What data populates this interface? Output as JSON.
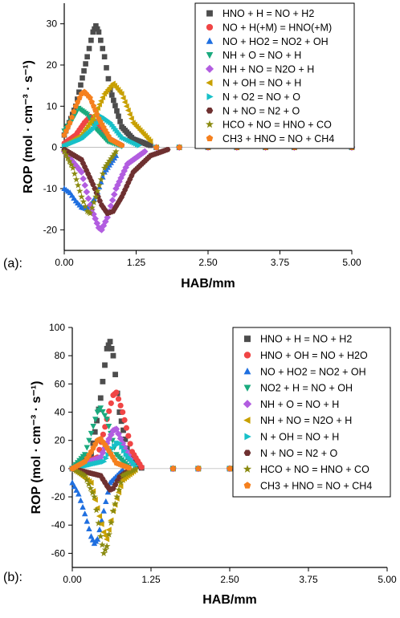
{
  "chart_data": [
    {
      "type": "scatter",
      "panel_label": "(a):",
      "xlabel": "HAB/mm",
      "ylabel": "ROP (mol · cm⁻³ · s⁻¹)",
      "xlim": [
        0,
        5
      ],
      "ylim": [
        -25,
        35
      ],
      "xticks": [
        "0.00",
        "1.25",
        "2.50",
        "3.75",
        "5.00"
      ],
      "yticks": [
        "30",
        "20",
        "10",
        "0",
        "-10",
        "-20"
      ],
      "grid": false,
      "legend_position": "top-right",
      "series": [
        {
          "name": "HNO + H = NO + H2",
          "marker": "square",
          "color": "#4d4d4d",
          "x": [
            0.0,
            0.2,
            0.4,
            0.5,
            0.55,
            0.6,
            0.7,
            0.8,
            1.0,
            1.2,
            1.5
          ],
          "y": [
            3,
            10,
            22,
            28,
            29.5,
            28,
            22,
            14,
            5,
            2,
            0.5
          ]
        },
        {
          "name": "NO + H(+M) = HNO(+M)",
          "marker": "circle",
          "color": "#f04545",
          "x": [
            0.0,
            0.2,
            0.35,
            0.45,
            0.6,
            0.8,
            1.0
          ],
          "y": [
            1,
            3,
            6,
            7.5,
            5,
            2,
            0.5
          ]
        },
        {
          "name": "NO + HO2 = NO2 + OH",
          "marker": "triangle-up",
          "color": "#1f6fe0",
          "x": [
            0.0,
            0.1,
            0.2,
            0.3,
            0.4,
            0.55,
            0.7,
            0.9
          ],
          "y": [
            -10,
            -11,
            -13,
            -14.5,
            -15,
            -12,
            -6,
            -2
          ]
        },
        {
          "name": "NH + O = NO + H",
          "marker": "triangle-down",
          "color": "#1aaa7e",
          "x": [
            0.0,
            0.15,
            0.25,
            0.4,
            0.55,
            0.75,
            1.0
          ],
          "y": [
            4,
            7,
            9.5,
            8,
            4.5,
            1.5,
            0.3
          ]
        },
        {
          "name": "NH + NO = N2O + H",
          "marker": "diamond",
          "color": "#b25de0",
          "x": [
            0.0,
            0.3,
            0.45,
            0.6,
            0.65,
            0.75,
            0.9,
            1.1,
            1.4
          ],
          "y": [
            -1,
            -6,
            -14,
            -19.5,
            -20,
            -17,
            -10,
            -4,
            -1
          ]
        },
        {
          "name": "N + OH = NO + H",
          "marker": "triangle-left",
          "color": "#c8a000",
          "x": [
            0.0,
            0.3,
            0.5,
            0.7,
            0.85,
            1.0,
            1.2,
            1.5
          ],
          "y": [
            0.5,
            3,
            7,
            13,
            15.5,
            13,
            6,
            1.5
          ]
        },
        {
          "name": "N + O2 = NO + O",
          "marker": "triangle-right",
          "color": "#17c0c8",
          "x": [
            0.0,
            0.3,
            0.5,
            0.65,
            0.8,
            1.0,
            1.3
          ],
          "y": [
            0.3,
            2,
            4.5,
            7.5,
            6,
            2.5,
            0.5
          ]
        },
        {
          "name": "N + NO = N2 + O",
          "marker": "hexagon",
          "color": "#6e3030",
          "x": [
            0.0,
            0.3,
            0.5,
            0.65,
            0.75,
            0.85,
            1.0,
            1.2,
            1.5,
            1.8
          ],
          "y": [
            -0.5,
            -3,
            -9,
            -14,
            -16,
            -15.5,
            -12,
            -6,
            -2,
            -0.5
          ]
        },
        {
          "name": "HCO + NO = HNO + CO",
          "marker": "star",
          "color": "#8a8a10",
          "x": [
            0.0,
            0.15,
            0.3,
            0.4,
            0.45,
            0.55,
            0.7,
            0.9
          ],
          "y": [
            -1,
            -5,
            -12,
            -15.5,
            -16,
            -12,
            -5,
            -1
          ]
        },
        {
          "name": "CH3 + HNO = NO + CH4",
          "marker": "pentagon",
          "color": "#f5801e",
          "x": [
            0.0,
            0.1,
            0.2,
            0.3,
            0.35,
            0.45,
            0.6,
            0.8,
            1.0
          ],
          "y": [
            3,
            6,
            10,
            13,
            13.5,
            12,
            7,
            2,
            0.5
          ]
        }
      ]
    },
    {
      "type": "scatter",
      "panel_label": "(b):",
      "xlabel": "HAB/mm",
      "ylabel": "ROP (mol · cm⁻³ · s⁻¹)",
      "xlim": [
        0,
        5
      ],
      "ylim": [
        -70,
        100
      ],
      "xticks": [
        "0.00",
        "1.25",
        "2.50",
        "3.75",
        "5.00"
      ],
      "yticks": [
        "100",
        "80",
        "60",
        "40",
        "20",
        "0",
        "-20",
        "-40",
        "-60"
      ],
      "grid": false,
      "legend_position": "top-right",
      "series": [
        {
          "name": "HNO + H = NO + H2",
          "marker": "square",
          "color": "#4d4d4d",
          "x": [
            0.0,
            0.3,
            0.45,
            0.55,
            0.6,
            0.65,
            0.75,
            0.9,
            1.1
          ],
          "y": [
            0,
            10,
            50,
            85,
            90,
            80,
            40,
            8,
            0.5
          ]
        },
        {
          "name": "HNO + OH = NO + H2O",
          "marker": "circle",
          "color": "#f04545",
          "x": [
            0.0,
            0.4,
            0.55,
            0.65,
            0.7,
            0.8,
            0.95,
            1.1
          ],
          "y": [
            0,
            8,
            35,
            52,
            54,
            40,
            12,
            1
          ]
        },
        {
          "name": "NO + HO2 = NO2 + OH",
          "marker": "triangle-up",
          "color": "#1f6fe0",
          "x": [
            0.0,
            0.1,
            0.2,
            0.3,
            0.35,
            0.4,
            0.5,
            0.6,
            0.8
          ],
          "y": [
            -10,
            -18,
            -32,
            -48,
            -53,
            -50,
            -30,
            -10,
            -1
          ]
        },
        {
          "name": "NO2 + H = NO + OH",
          "marker": "triangle-down",
          "color": "#1aaa7e",
          "x": [
            0.0,
            0.2,
            0.3,
            0.4,
            0.45,
            0.55,
            0.7,
            0.9
          ],
          "y": [
            0,
            10,
            25,
            40,
            43,
            35,
            10,
            1
          ]
        },
        {
          "name": "NH + O = NO + H",
          "marker": "diamond",
          "color": "#b25de0",
          "x": [
            0.0,
            0.45,
            0.55,
            0.65,
            0.7,
            0.8,
            0.95
          ],
          "y": [
            0,
            8,
            18,
            27,
            28,
            18,
            4
          ]
        },
        {
          "name": "NH + NO = N2O + H",
          "marker": "triangle-left",
          "color": "#c8a000",
          "x": [
            0.0,
            0.3,
            0.4,
            0.5,
            0.55,
            0.65,
            0.8,
            1.0
          ],
          "y": [
            0,
            -10,
            -28,
            -45,
            -50,
            -30,
            -8,
            -1
          ]
        },
        {
          "name": "N + OH = NO + H",
          "marker": "triangle-right",
          "color": "#17c0c8",
          "x": [
            0.0,
            0.5,
            0.6,
            0.7,
            0.75,
            0.85,
            1.0
          ],
          "y": [
            0,
            5,
            12,
            18,
            18,
            10,
            2
          ]
        },
        {
          "name": "N + NO = N2 + O",
          "marker": "hexagon",
          "color": "#6e3030",
          "x": [
            0.0,
            0.45,
            0.55,
            0.6,
            0.65,
            0.75,
            0.9
          ],
          "y": [
            0,
            -5,
            -12,
            -15,
            -14,
            -6,
            -1
          ]
        },
        {
          "name": "HCO + NO = HNO + CO",
          "marker": "star",
          "color": "#8a8a10",
          "x": [
            0.0,
            0.2,
            0.35,
            0.45,
            0.5,
            0.55,
            0.65,
            0.8,
            1.0
          ],
          "y": [
            0,
            -5,
            -20,
            -48,
            -60,
            -55,
            -30,
            -5,
            -0.5
          ]
        },
        {
          "name": "CH3 + HNO = NO + CH4",
          "marker": "pentagon",
          "color": "#f5801e",
          "x": [
            0.0,
            0.2,
            0.3,
            0.4,
            0.45,
            0.55,
            0.7,
            0.9
          ],
          "y": [
            0,
            5,
            12,
            20,
            21,
            15,
            4,
            0.5
          ]
        }
      ]
    }
  ]
}
